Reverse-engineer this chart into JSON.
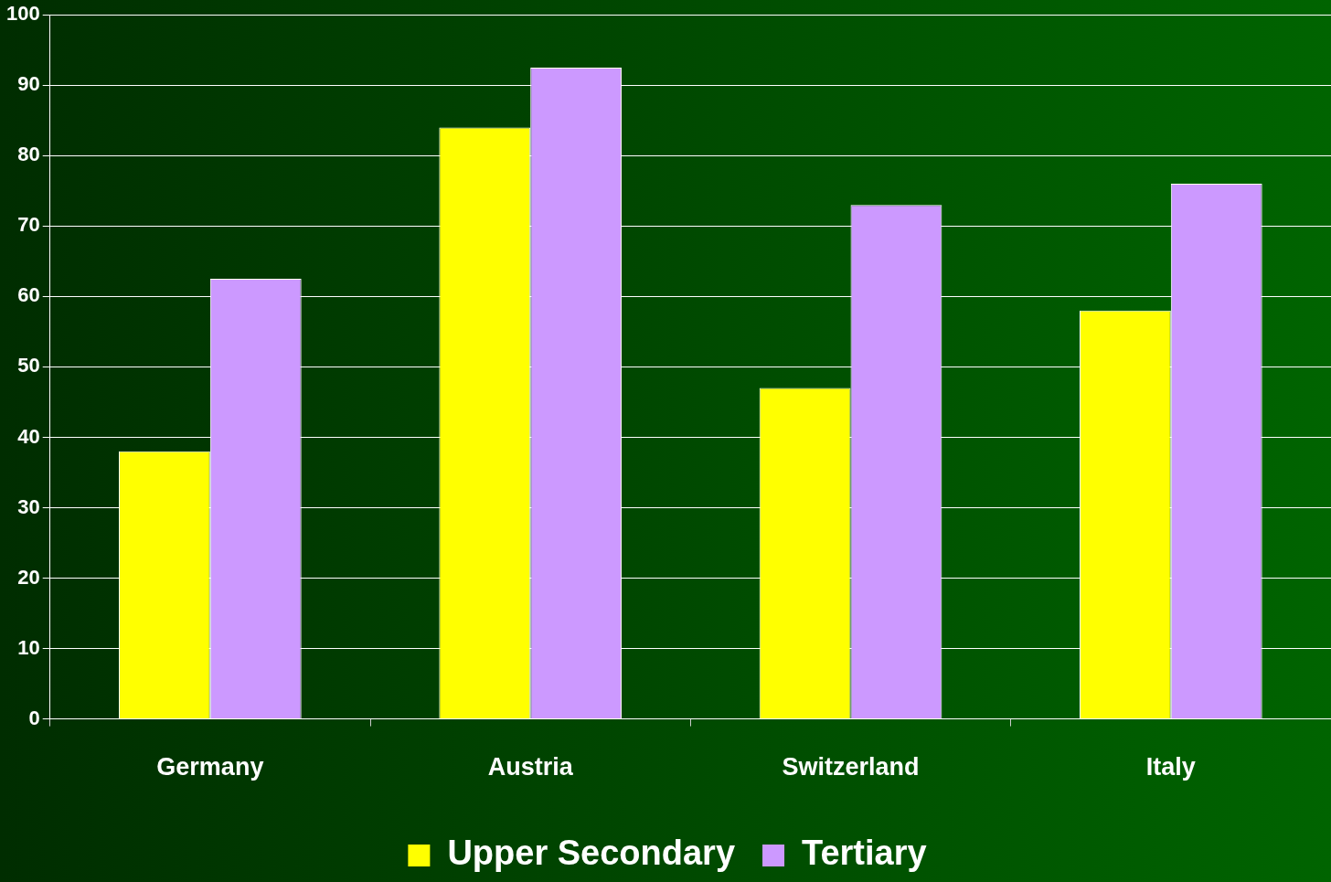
{
  "chart_data": {
    "type": "bar",
    "categories": [
      "Germany",
      "Austria",
      "Switzerland",
      "Italy"
    ],
    "series": [
      {
        "name": "Upper Secondary",
        "color": "#ffff00",
        "values": [
          38,
          84,
          47,
          58
        ]
      },
      {
        "name": "Tertiary",
        "color": "#cc99ff",
        "values": [
          62.5,
          92.5,
          73,
          76
        ]
      }
    ],
    "ylim": [
      0,
      100
    ],
    "yticks": [
      0,
      10,
      20,
      30,
      40,
      50,
      60,
      70,
      80,
      90,
      100
    ],
    "grid": "y",
    "legend": "bottom"
  }
}
